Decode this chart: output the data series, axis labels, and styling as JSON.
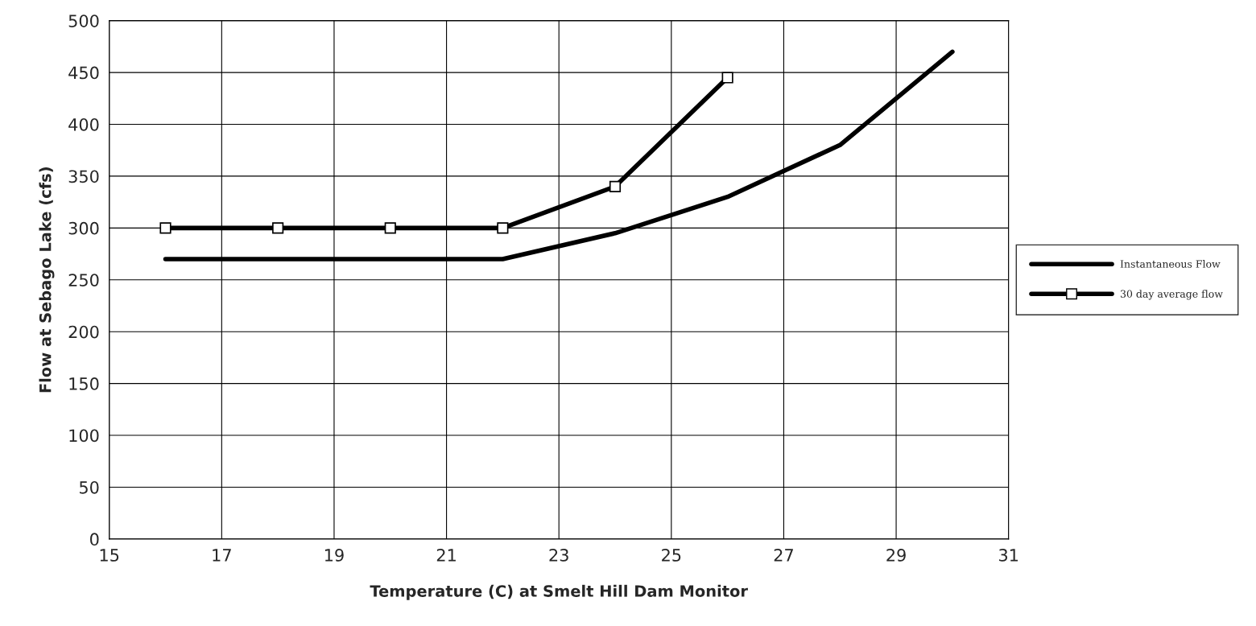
{
  "chart_data": {
    "type": "line",
    "xlabel": "Temperature (C) at Smelt Hill Dam Monitor",
    "ylabel": "Flow at Sebago Lake (cfs)",
    "x": [
      16,
      18,
      20,
      22,
      24,
      26,
      28,
      30
    ],
    "series": [
      {
        "name": "Instantaneous Flow",
        "color": "#000000",
        "marker": "none",
        "values": [
          270,
          270,
          270,
          270,
          295,
          330,
          380,
          470
        ]
      },
      {
        "name": "30 day average flow",
        "color": "#000000",
        "marker": "square",
        "x": [
          16,
          18,
          20,
          22,
          24,
          26
        ],
        "values": [
          300,
          300,
          300,
          300,
          340,
          445
        ]
      }
    ],
    "xlim": [
      15,
      31
    ],
    "xticks": [
      15,
      17,
      19,
      21,
      23,
      25,
      27,
      29,
      31
    ],
    "ylim": [
      0,
      500
    ],
    "yticks": [
      0,
      50,
      100,
      150,
      200,
      250,
      300,
      350,
      400,
      450,
      500
    ],
    "grid": true,
    "legend": "right",
    "line_style": "solid"
  }
}
